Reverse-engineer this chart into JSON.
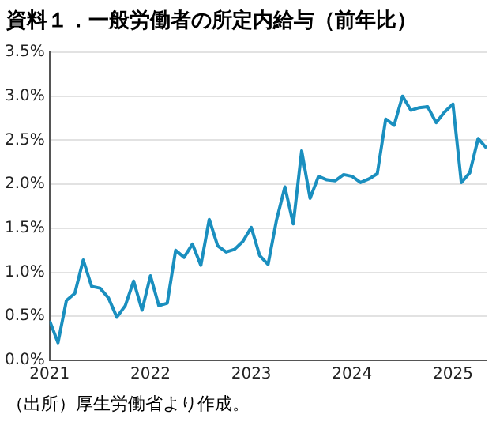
{
  "chart_data": {
    "type": "line",
    "title": "資料１．一般労働者の所定内給与（前年比）",
    "x": [
      "2021-01",
      "2021-02",
      "2021-03",
      "2021-04",
      "2021-05",
      "2021-06",
      "2021-07",
      "2021-08",
      "2021-09",
      "2021-10",
      "2021-11",
      "2021-12",
      "2022-01",
      "2022-02",
      "2022-03",
      "2022-04",
      "2022-05",
      "2022-06",
      "2022-07",
      "2022-08",
      "2022-09",
      "2022-10",
      "2022-11",
      "2022-12",
      "2023-01",
      "2023-02",
      "2023-03",
      "2023-04",
      "2023-05",
      "2023-06",
      "2023-07",
      "2023-08",
      "2023-09",
      "2023-10",
      "2023-11",
      "2023-12",
      "2024-01",
      "2024-02",
      "2024-03",
      "2024-04",
      "2024-05",
      "2024-06",
      "2024-07",
      "2024-08",
      "2024-09",
      "2024-10",
      "2024-11",
      "2024-12",
      "2025-01",
      "2025-02",
      "2025-03",
      "2025-04",
      "2025-05"
    ],
    "series": [
      {
        "color": "#1a8fbf",
        "values": [
          0.45,
          0.2,
          0.68,
          0.76,
          1.14,
          0.84,
          0.82,
          0.71,
          0.49,
          0.62,
          0.9,
          0.57,
          0.96,
          0.62,
          0.65,
          1.25,
          1.17,
          1.32,
          1.08,
          1.6,
          1.3,
          1.23,
          1.26,
          1.35,
          1.51,
          1.19,
          1.09,
          1.59,
          1.97,
          1.55,
          2.38,
          1.84,
          2.09,
          2.05,
          2.04,
          2.11,
          2.09,
          2.02,
          2.06,
          2.12,
          2.74,
          2.67,
          3.0,
          2.84,
          2.87,
          2.88,
          2.7,
          2.82,
          2.91,
          2.02,
          2.13,
          2.52,
          2.41
        ]
      }
    ],
    "xlim": [
      "2021-01",
      "2025-05"
    ],
    "xticks": [
      "2021",
      "2022",
      "2023",
      "2024",
      "2025"
    ],
    "ylim": [
      0,
      3.5
    ],
    "yticks": [
      {
        "value": 0,
        "label": "0.0%"
      },
      {
        "value": 0.5,
        "label": "0.5%"
      },
      {
        "value": 1,
        "label": "1.0%"
      },
      {
        "value": 1.5,
        "label": "1.5%"
      },
      {
        "value": 2,
        "label": "2.0%"
      },
      {
        "value": 2.5,
        "label": "2.5%"
      },
      {
        "value": 3,
        "label": "3.0%"
      },
      {
        "value": 3.5,
        "label": "3.5%"
      }
    ],
    "grid": "y",
    "marker": "none",
    "line_style": "solid",
    "legend": false,
    "annotations": [
      "（出所）厚生労働省より作成。"
    ]
  }
}
